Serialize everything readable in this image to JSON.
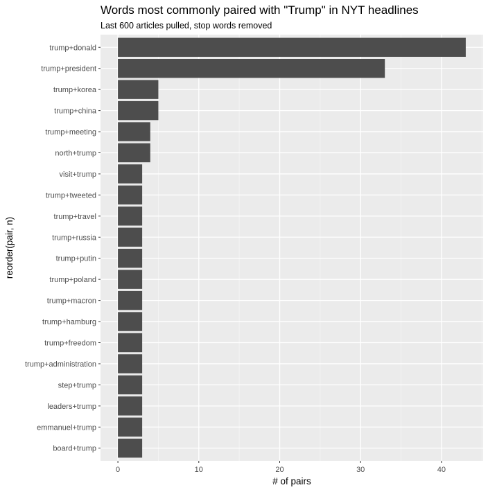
{
  "chart_data": {
    "type": "bar",
    "orientation": "horizontal",
    "title": "Words most commonly paired with \"Trump\" in NYT headlines",
    "subtitle": "Last 600 articles pulled, stop words removed",
    "xlabel": "# of pairs",
    "ylabel": "reorder(pair, n)",
    "categories": [
      "trump+donald",
      "trump+president",
      "trump+korea",
      "trump+china",
      "trump+meeting",
      "north+trump",
      "visit+trump",
      "trump+tweeted",
      "trump+travel",
      "trump+russia",
      "trump+putin",
      "trump+poland",
      "trump+macron",
      "trump+hamburg",
      "trump+freedom",
      "trump+administration",
      "step+trump",
      "leaders+trump",
      "emmanuel+trump",
      "board+trump"
    ],
    "values": [
      43,
      33,
      5,
      5,
      4,
      4,
      3,
      3,
      3,
      3,
      3,
      3,
      3,
      3,
      3,
      3,
      3,
      3,
      3,
      3
    ],
    "xlim": [
      -2.15,
      45.15
    ],
    "xticks": [
      0,
      10,
      20,
      30,
      40
    ],
    "grid": true,
    "colors": {
      "bar": "#4d4d4d",
      "panel": "#ebebeb",
      "grid_major": "#ffffff",
      "grid_minor": "#f5f5f5"
    }
  }
}
